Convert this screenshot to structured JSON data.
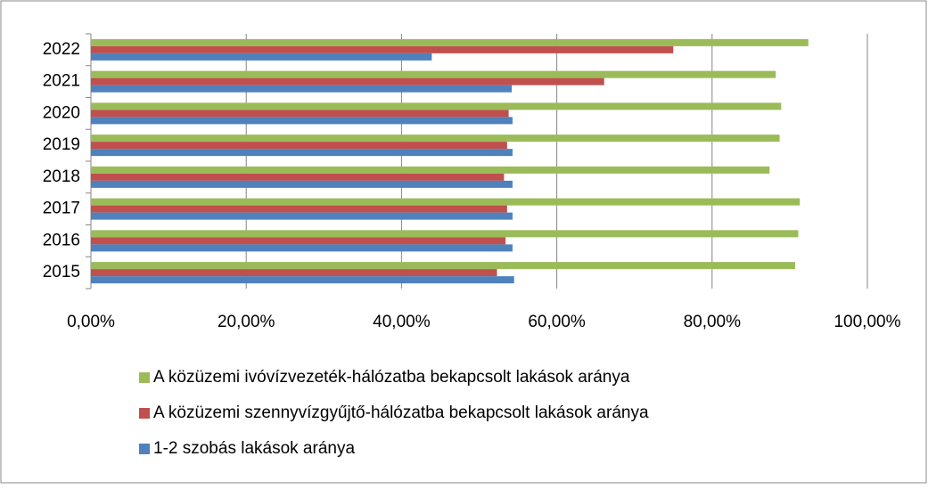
{
  "chart_data": {
    "type": "hbar",
    "categories": [
      "2015",
      "2016",
      "2017",
      "2018",
      "2019",
      "2020",
      "2021",
      "2022"
    ],
    "series": [
      {
        "name": "A közüzemi ivóvízvezeték-hálózatba bekapcsolt lakások aránya",
        "color": "#9bbb59",
        "values": [
          90.7,
          91.1,
          91.3,
          87.4,
          88.7,
          88.9,
          88.2,
          92.4
        ]
      },
      {
        "name": "A közüzemi szennyvízgyűjtő-hálózatba bekapcsolt lakások aránya",
        "color": "#c0504d",
        "values": [
          52.3,
          53.4,
          53.6,
          53.2,
          53.6,
          53.8,
          66.1,
          75.0
        ]
      },
      {
        "name": "1-2 szobás lakások aránya",
        "color": "#4f81bd",
        "values": [
          54.5,
          54.3,
          54.3,
          54.3,
          54.3,
          54.3,
          54.2,
          43.9
        ]
      }
    ],
    "xlim": [
      0,
      100
    ],
    "xticks": [
      {
        "value": 0,
        "label": "0,00%"
      },
      {
        "value": 20,
        "label": "20,00%"
      },
      {
        "value": 40,
        "label": "40,00%"
      },
      {
        "value": 60,
        "label": "60,00%"
      },
      {
        "value": 80,
        "label": "80,00%"
      },
      {
        "value": 100,
        "label": "100,00%"
      }
    ],
    "grid": true,
    "legend": "bottom"
  }
}
